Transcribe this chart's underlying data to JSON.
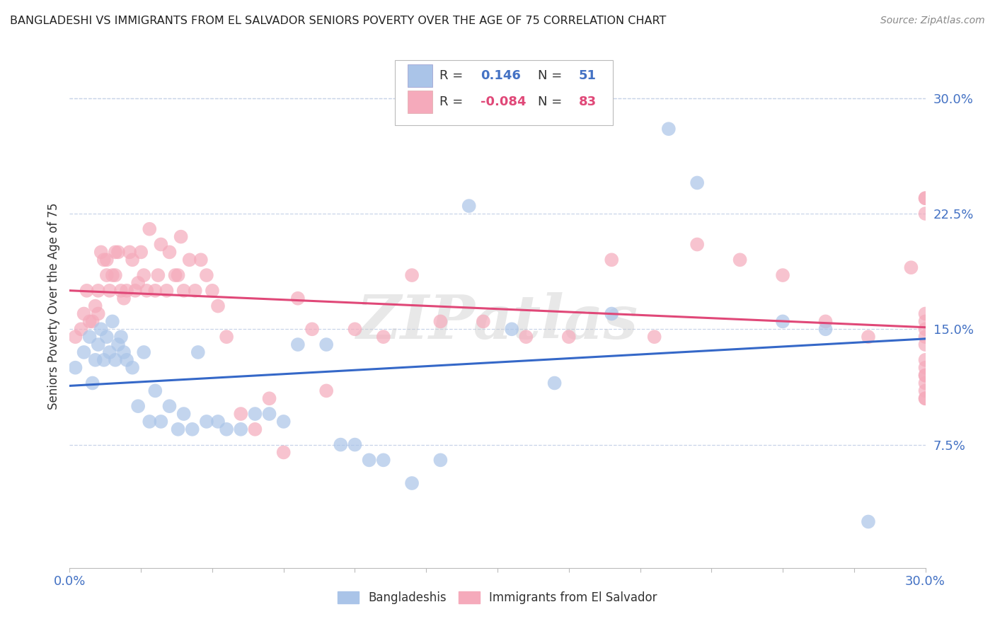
{
  "title": "BANGLADESHI VS IMMIGRANTS FROM EL SALVADOR SENIORS POVERTY OVER THE AGE OF 75 CORRELATION CHART",
  "source": "Source: ZipAtlas.com",
  "ylabel": "Seniors Poverty Over the Age of 75",
  "xlim": [
    0.0,
    0.3
  ],
  "ylim": [
    -0.005,
    0.335
  ],
  "yticks": [
    0.075,
    0.15,
    0.225,
    0.3
  ],
  "ytick_labels": [
    "7.5%",
    "15.0%",
    "22.5%",
    "30.0%"
  ],
  "xticks": [
    0.0,
    0.025,
    0.05,
    0.075,
    0.1,
    0.125,
    0.15,
    0.175,
    0.2,
    0.225,
    0.25,
    0.275,
    0.3
  ],
  "blue_color": "#aac4e8",
  "pink_color": "#f5aabb",
  "blue_line_color": "#3568c8",
  "pink_line_color": "#e04878",
  "watermark": "ZIPatlas",
  "background_color": "#ffffff",
  "grid_color": "#c8d4e8",
  "blue_x": [
    0.002,
    0.005,
    0.007,
    0.008,
    0.009,
    0.01,
    0.011,
    0.012,
    0.013,
    0.014,
    0.015,
    0.016,
    0.017,
    0.018,
    0.019,
    0.02,
    0.022,
    0.024,
    0.026,
    0.028,
    0.03,
    0.032,
    0.035,
    0.038,
    0.04,
    0.043,
    0.045,
    0.048,
    0.052,
    0.055,
    0.06,
    0.065,
    0.07,
    0.075,
    0.08,
    0.09,
    0.095,
    0.1,
    0.105,
    0.11,
    0.12,
    0.13,
    0.14,
    0.155,
    0.17,
    0.19,
    0.21,
    0.22,
    0.25,
    0.265,
    0.28
  ],
  "blue_y": [
    0.125,
    0.135,
    0.145,
    0.115,
    0.13,
    0.14,
    0.15,
    0.13,
    0.145,
    0.135,
    0.155,
    0.13,
    0.14,
    0.145,
    0.135,
    0.13,
    0.125,
    0.1,
    0.135,
    0.09,
    0.11,
    0.09,
    0.1,
    0.085,
    0.095,
    0.085,
    0.135,
    0.09,
    0.09,
    0.085,
    0.085,
    0.095,
    0.095,
    0.09,
    0.14,
    0.14,
    0.075,
    0.075,
    0.065,
    0.065,
    0.05,
    0.065,
    0.23,
    0.15,
    0.115,
    0.16,
    0.28,
    0.245,
    0.155,
    0.15,
    0.025
  ],
  "pink_x": [
    0.002,
    0.004,
    0.005,
    0.006,
    0.007,
    0.008,
    0.009,
    0.01,
    0.01,
    0.011,
    0.012,
    0.013,
    0.013,
    0.014,
    0.015,
    0.016,
    0.016,
    0.017,
    0.018,
    0.019,
    0.02,
    0.021,
    0.022,
    0.023,
    0.024,
    0.025,
    0.026,
    0.027,
    0.028,
    0.03,
    0.031,
    0.032,
    0.034,
    0.035,
    0.037,
    0.038,
    0.039,
    0.04,
    0.042,
    0.044,
    0.046,
    0.048,
    0.05,
    0.052,
    0.055,
    0.06,
    0.065,
    0.07,
    0.075,
    0.08,
    0.085,
    0.09,
    0.1,
    0.11,
    0.12,
    0.13,
    0.145,
    0.16,
    0.175,
    0.19,
    0.205,
    0.22,
    0.235,
    0.25,
    0.265,
    0.28,
    0.295,
    0.3,
    0.3,
    0.3,
    0.3,
    0.3,
    0.3,
    0.3,
    0.3,
    0.3,
    0.3,
    0.3,
    0.3,
    0.3,
    0.3,
    0.3,
    0.3
  ],
  "pink_y": [
    0.145,
    0.15,
    0.16,
    0.175,
    0.155,
    0.155,
    0.165,
    0.16,
    0.175,
    0.2,
    0.195,
    0.185,
    0.195,
    0.175,
    0.185,
    0.2,
    0.185,
    0.2,
    0.175,
    0.17,
    0.175,
    0.2,
    0.195,
    0.175,
    0.18,
    0.2,
    0.185,
    0.175,
    0.215,
    0.175,
    0.185,
    0.205,
    0.175,
    0.2,
    0.185,
    0.185,
    0.21,
    0.175,
    0.195,
    0.175,
    0.195,
    0.185,
    0.175,
    0.165,
    0.145,
    0.095,
    0.085,
    0.105,
    0.07,
    0.17,
    0.15,
    0.11,
    0.15,
    0.145,
    0.185,
    0.155,
    0.155,
    0.145,
    0.145,
    0.195,
    0.145,
    0.205,
    0.195,
    0.185,
    0.155,
    0.145,
    0.19,
    0.105,
    0.115,
    0.13,
    0.14,
    0.155,
    0.125,
    0.235,
    0.15,
    0.235,
    0.225,
    0.16,
    0.12,
    0.145,
    0.11,
    0.12,
    0.105
  ]
}
